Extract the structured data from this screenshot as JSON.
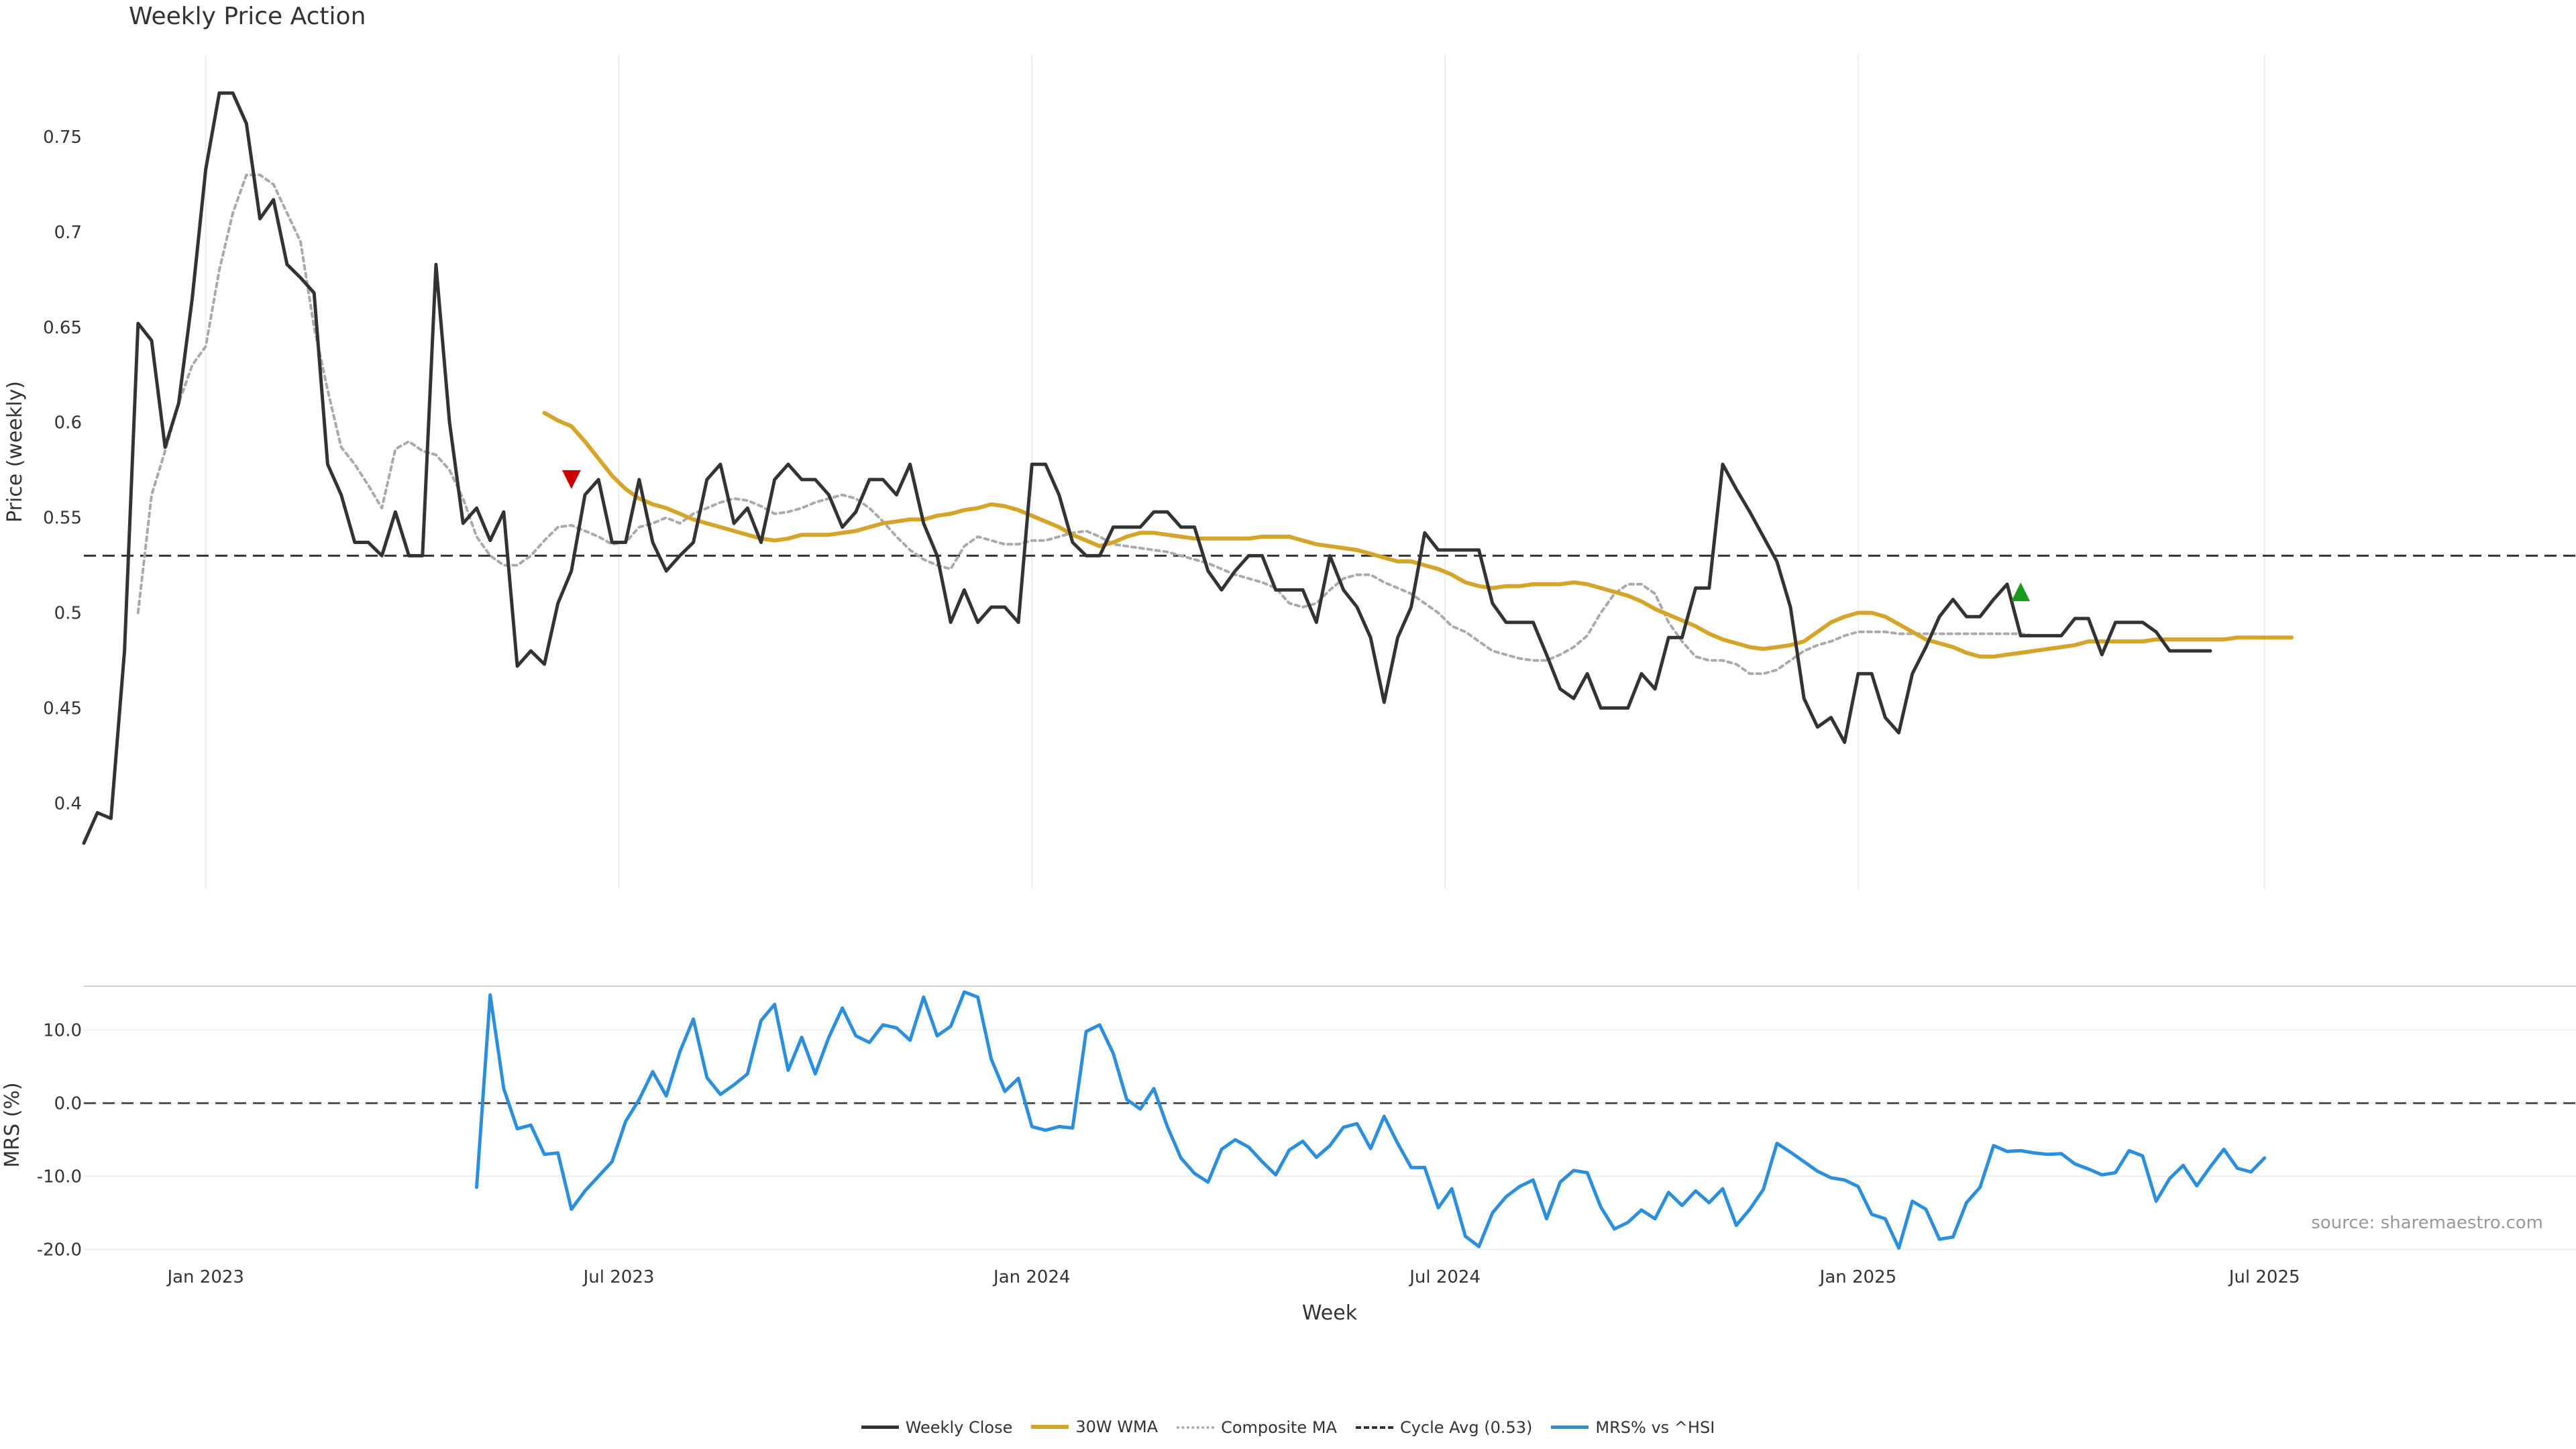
{
  "title": "Weekly Price Action",
  "source_label": "source: sharemaestro.com",
  "colors": {
    "close": "#333333",
    "wma": "#d4a52a",
    "composite": "#aaaaaa",
    "cycle": "#333333",
    "mrs": "#2b8fdc",
    "sell": "#cc0000",
    "buy": "#1a9a1a"
  },
  "chart_data": [
    {
      "type": "line",
      "title": "Weekly Price Action",
      "ylabel": "Price (weekly)",
      "ylim": [
        0.355,
        0.793
      ],
      "yticks": [
        0.4,
        0.45,
        0.5,
        0.55,
        0.6,
        0.65,
        0.7,
        0.75
      ],
      "ytick_labels": [
        "0.4",
        "0.45",
        "0.5",
        "0.55",
        "0.6",
        "0.65",
        "0.7",
        "0.75"
      ],
      "xlim": [
        0,
        184
      ],
      "x_unit": "weeks, starting 2022-10-30",
      "xticks": [
        9,
        39.5,
        70,
        100.5,
        131,
        161
      ],
      "xtick_labels": [
        "Jan 2023",
        "Jul 2023",
        "Jan 2024",
        "Jul 2024",
        "Jan 2025",
        "Jul 2025"
      ],
      "grid": true,
      "cycle_avg": 0.53,
      "series": [
        {
          "name": "Weekly Close",
          "values": [
            0.379,
            0.395,
            0.392,
            0.48,
            0.652,
            0.643,
            0.587,
            0.61,
            0.665,
            0.733,
            0.773,
            0.773,
            0.757,
            0.707,
            0.717,
            0.683,
            0.676,
            0.668,
            0.578,
            0.562,
            0.537,
            0.537,
            0.53,
            0.553,
            0.53,
            0.53,
            0.683,
            0.6,
            0.547,
            0.555,
            0.538,
            0.553,
            0.472,
            0.48,
            0.473,
            0.505,
            0.522,
            0.562,
            0.57,
            0.537,
            0.537,
            0.57,
            0.537,
            0.522,
            0.53,
            0.537,
            0.57,
            0.578,
            0.547,
            0.555,
            0.537,
            0.57,
            0.578,
            0.57,
            0.57,
            0.562,
            0.545,
            0.553,
            0.57,
            0.57,
            0.562,
            0.578,
            0.547,
            0.53,
            0.495,
            0.512,
            0.495,
            0.503,
            0.503,
            0.495,
            0.578,
            0.578,
            0.562,
            0.537,
            0.53,
            0.53,
            0.545,
            0.545,
            0.545,
            0.553,
            0.553,
            0.545,
            0.545,
            0.522,
            0.512,
            0.522,
            0.53,
            0.53,
            0.512,
            0.512,
            0.512,
            0.495,
            0.53,
            0.512,
            0.503,
            0.487,
            0.453,
            0.487,
            0.503,
            0.542,
            0.533,
            0.533,
            0.533,
            0.533,
            0.505,
            0.495,
            0.495,
            0.495,
            0.478,
            0.46,
            0.455,
            0.468,
            0.45,
            0.45,
            0.45,
            0.468,
            0.46,
            0.487,
            0.487,
            0.513,
            0.513,
            0.578,
            0.565,
            0.553,
            0.54,
            0.527,
            0.503,
            0.455,
            0.44,
            0.445,
            0.432,
            0.468,
            0.468,
            0.445,
            0.437,
            0.468,
            0.482,
            0.498,
            0.507,
            0.498,
            0.498,
            0.507,
            0.515,
            0.488,
            0.488,
            0.488,
            0.488,
            0.497,
            0.497,
            0.478,
            0.495,
            0.495,
            0.495,
            0.49,
            0.48,
            0.48,
            0.48,
            0.48
          ],
          "x_start": 0
        },
        {
          "name": "Composite MA",
          "values": [
            0.5,
            0.562,
            0.585,
            0.61,
            0.63,
            0.64,
            0.68,
            0.71,
            0.73,
            0.73,
            0.725,
            0.71,
            0.695,
            0.65,
            0.617,
            0.587,
            0.578,
            0.567,
            0.555,
            0.586,
            0.59,
            0.585,
            0.583,
            0.575,
            0.56,
            0.54,
            0.53,
            0.525,
            0.525,
            0.53,
            0.538,
            0.545,
            0.546,
            0.543,
            0.54,
            0.536,
            0.537,
            0.545,
            0.547,
            0.55,
            0.547,
            0.552,
            0.555,
            0.558,
            0.56,
            0.559,
            0.556,
            0.552,
            0.553,
            0.555,
            0.558,
            0.56,
            0.562,
            0.56,
            0.555,
            0.548,
            0.54,
            0.533,
            0.528,
            0.525,
            0.523,
            0.535,
            0.54,
            0.538,
            0.536,
            0.536,
            0.538,
            0.538,
            0.54,
            0.542,
            0.543,
            0.54,
            0.536,
            0.535,
            0.534,
            0.533,
            0.532,
            0.53,
            0.528,
            0.526,
            0.523,
            0.52,
            0.518,
            0.516,
            0.513,
            0.505,
            0.503,
            0.505,
            0.512,
            0.518,
            0.52,
            0.52,
            0.516,
            0.513,
            0.51,
            0.505,
            0.5,
            0.493,
            0.49,
            0.485,
            0.48,
            0.478,
            0.476,
            0.475,
            0.475,
            0.478,
            0.482,
            0.488,
            0.5,
            0.51,
            0.515,
            0.515,
            0.51,
            0.495,
            0.485,
            0.477,
            0.475,
            0.475,
            0.473,
            0.468,
            0.468,
            0.47,
            0.475,
            0.48,
            0.483,
            0.485,
            0.488,
            0.49,
            0.49,
            0.49,
            0.489,
            0.489,
            0.489,
            0.489,
            0.489,
            0.489,
            0.489,
            0.489,
            0.489,
            0.489,
            0.488,
            0.488,
            0.488
          ],
          "x_start": 4
        },
        {
          "name": "30W WMA",
          "values": [
            0.605,
            0.601,
            0.598,
            0.59,
            0.581,
            0.572,
            0.565,
            0.56,
            0.557,
            0.555,
            0.552,
            0.549,
            0.547,
            0.545,
            0.543,
            0.541,
            0.539,
            0.538,
            0.539,
            0.541,
            0.541,
            0.541,
            0.542,
            0.543,
            0.545,
            0.547,
            0.548,
            0.549,
            0.549,
            0.551,
            0.552,
            0.554,
            0.555,
            0.557,
            0.556,
            0.554,
            0.551,
            0.548,
            0.545,
            0.541,
            0.538,
            0.535,
            0.537,
            0.54,
            0.542,
            0.542,
            0.541,
            0.54,
            0.539,
            0.539,
            0.539,
            0.539,
            0.539,
            0.54,
            0.54,
            0.54,
            0.538,
            0.536,
            0.535,
            0.534,
            0.533,
            0.531,
            0.529,
            0.527,
            0.527,
            0.525,
            0.523,
            0.52,
            0.516,
            0.514,
            0.513,
            0.514,
            0.514,
            0.515,
            0.515,
            0.515,
            0.516,
            0.515,
            0.513,
            0.511,
            0.509,
            0.506,
            0.502,
            0.499,
            0.496,
            0.493,
            0.489,
            0.486,
            0.484,
            0.482,
            0.481,
            0.482,
            0.483,
            0.485,
            0.49,
            0.495,
            0.498,
            0.5,
            0.5,
            0.498,
            0.494,
            0.49,
            0.486,
            0.484,
            0.482,
            0.479,
            0.477,
            0.477,
            0.478,
            0.479,
            0.48,
            0.481,
            0.482,
            0.483,
            0.485,
            0.485,
            0.485,
            0.485,
            0.485,
            0.486,
            0.486,
            0.486,
            0.486,
            0.486,
            0.486,
            0.487,
            0.487,
            0.487,
            0.487,
            0.487
          ],
          "x_start": 34
        }
      ],
      "markers": [
        {
          "type": "sell",
          "x": 36,
          "y": 0.57
        },
        {
          "type": "buy",
          "x": 143,
          "y": 0.511
        }
      ]
    },
    {
      "type": "line",
      "ylabel": "MRS (%)",
      "ylim": [
        -20.5,
        16
      ],
      "yticks": [
        -20,
        -10,
        0,
        10
      ],
      "ytick_labels": [
        "-20.0",
        "-10.0",
        "0.0",
        "10.0"
      ],
      "xlabel": "Week",
      "xlim": [
        0,
        184
      ],
      "xticks": [
        9,
        39.5,
        70,
        100.5,
        131,
        161
      ],
      "xtick_labels": [
        "Jan 2023",
        "Jul 2023",
        "Jan 2024",
        "Jul 2024",
        "Jan 2025",
        "Jul 2025"
      ],
      "series": [
        {
          "name": "MRS% vs ^HSI",
          "values": [
            -11.5,
            14.8,
            2,
            -3.5,
            -3,
            -7,
            -6.8,
            -14.5,
            -12,
            -10,
            -8,
            -2.5,
            0.5,
            4.3,
            1,
            7,
            11.5,
            3.5,
            1.2,
            2.5,
            4,
            11.3,
            13.5,
            4.5,
            9,
            4,
            9,
            13,
            9.2,
            8.3,
            10.7,
            10.3,
            8.6,
            14.5,
            9.2,
            10.5,
            15.2,
            14.5,
            6,
            1.6,
            3.4,
            -3.2,
            -3.7,
            -3.2,
            -3.4,
            9.8,
            10.7,
            6.8,
            0.5,
            -0.8,
            2,
            -3.2,
            -7.5,
            -9.6,
            -10.8,
            -6.3,
            -5,
            -6,
            -8,
            -9.8,
            -6.4,
            -5.2,
            -7.4,
            -5.8,
            -3.3,
            -2.8,
            -6.2,
            -1.8,
            -5.5,
            -8.8,
            -8.8,
            -14.3,
            -11.7,
            -18.2,
            -19.6,
            -15,
            -12.8,
            -11.4,
            -10.5,
            -15.8,
            -10.8,
            -9.2,
            -9.5,
            -14.2,
            -17.2,
            -16.3,
            -14.6,
            -15.8,
            -12.2,
            -14,
            -12,
            -13.6,
            -11.7,
            -16.7,
            -14.5,
            -11.8,
            -5.5,
            -6.7,
            -8,
            -9.3,
            -10.2,
            -10.5,
            -11.4,
            -15.2,
            -15.8,
            -19.8,
            -13.4,
            -14.5,
            -18.6,
            -18.3,
            -13.6,
            -11.5,
            -5.8,
            -6.6,
            -6.5,
            -6.8,
            -7,
            -6.9,
            -8.3,
            -9,
            -9.8,
            -9.5,
            -6.5,
            -7.2,
            -13.4,
            -10.3,
            -8.5,
            -11.3,
            -8.7,
            -6.3,
            -8.9,
            -9.4,
            -7.5
          ],
          "x_start": 29
        }
      ]
    }
  ],
  "legend": [
    {
      "label": "Weekly Close",
      "key": "close"
    },
    {
      "label": "30W WMA",
      "key": "wma"
    },
    {
      "label": "Composite MA",
      "key": "composite"
    },
    {
      "label": "Cycle Avg (0.53)",
      "key": "cycle"
    },
    {
      "label": "MRS% vs ^HSI",
      "key": "mrs"
    }
  ]
}
